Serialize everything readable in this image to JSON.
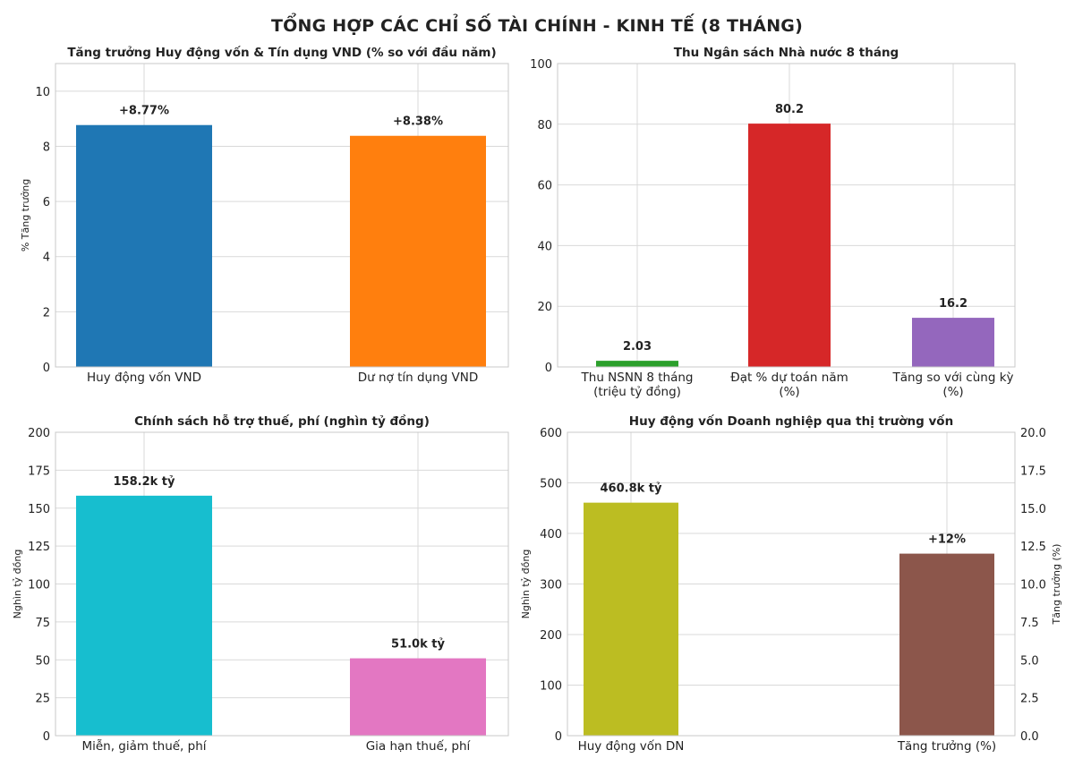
{
  "figure": {
    "suptitle": "TỔNG HỢP CÁC CHỈ SỐ TÀI CHÍNH - KINH TẾ (8 THÁNG)"
  },
  "colors": {
    "grid": "#d9d9d9",
    "axis": "#c8c8c8",
    "text": "#222222",
    "blue": "#1f77b4",
    "orange": "#ff7f0e",
    "green": "#2ca02c",
    "red": "#d62728",
    "purple": "#9467bd",
    "cyan": "#17becf",
    "pink": "#e377c2",
    "olive": "#bcbd22",
    "brown": "#8c564b"
  },
  "chart_data": [
    {
      "id": "c1",
      "type": "bar",
      "title": "Tăng trưởng Huy động vốn & Tín dụng VND (% so với đầu năm)",
      "xlabel": "",
      "ylabel": "% Tăng trưởng",
      "ylim": [
        0,
        11
      ],
      "yticks": [
        "0",
        "2",
        "4",
        "6",
        "8",
        "10"
      ],
      "ytick_values": [
        0,
        2,
        4,
        6,
        8,
        10
      ],
      "grid": true,
      "categories": [
        [
          "Huy động vốn VND"
        ],
        [
          "Dư nợ tín dụng VND"
        ]
      ],
      "values": [
        8.77,
        8.38
      ],
      "labels": [
        "+8.77%",
        "+8.38%"
      ],
      "colors": [
        "#1f77b4",
        "#ff7f0e"
      ]
    },
    {
      "id": "c2",
      "type": "bar",
      "title": "Thu Ngân sách Nhà nước 8 tháng",
      "xlabel": "",
      "ylabel": "",
      "ylim": [
        0,
        100
      ],
      "yticks": [
        "0",
        "20",
        "40",
        "60",
        "80",
        "100"
      ],
      "ytick_values": [
        0,
        20,
        40,
        60,
        80,
        100
      ],
      "grid": true,
      "categories": [
        [
          "Thu NSNN 8 tháng",
          "(triệu tỷ đồng)"
        ],
        [
          "Đạt % dự toán năm",
          "(%)"
        ],
        [
          "Tăng so với cùng kỳ",
          "(%)"
        ]
      ],
      "values": [
        2.03,
        80.2,
        16.2
      ],
      "labels": [
        "2.03",
        "80.2",
        "16.2"
      ],
      "colors": [
        "#2ca02c",
        "#d62728",
        "#9467bd"
      ]
    },
    {
      "id": "c3",
      "type": "bar",
      "title": "Chính sách hỗ trợ thuế, phí (nghìn tỷ đồng)",
      "xlabel": "",
      "ylabel": "Nghìn tỷ đồng",
      "ylim": [
        0,
        200
      ],
      "yticks": [
        "0",
        "25",
        "50",
        "75",
        "100",
        "125",
        "150",
        "175",
        "200"
      ],
      "ytick_values": [
        0,
        25,
        50,
        75,
        100,
        125,
        150,
        175,
        200
      ],
      "grid": true,
      "categories": [
        [
          "Miễn, giảm thuế, phí"
        ],
        [
          "Gia hạn thuế, phí"
        ]
      ],
      "values": [
        158.2,
        51.0
      ],
      "labels": [
        "158.2k tỷ",
        "51.0k tỷ"
      ],
      "colors": [
        "#17becf",
        "#e377c2"
      ]
    },
    {
      "id": "c4",
      "type": "bar",
      "title": "Huy động vốn Doanh nghiệp qua thị trường vốn",
      "xlabel": "",
      "ylabel": "Nghìn tỷ đồng",
      "ylabel_right": "Tăng trưởng (%)",
      "ylim": [
        0,
        600
      ],
      "ylim_right": [
        0,
        20
      ],
      "yticks": [
        "0",
        "100",
        "200",
        "300",
        "400",
        "500",
        "600"
      ],
      "ytick_values": [
        0,
        100,
        200,
        300,
        400,
        500,
        600
      ],
      "yticks_right": [
        "0.0",
        "2.5",
        "5.0",
        "7.5",
        "10.0",
        "12.5",
        "15.0",
        "17.5",
        "20.0"
      ],
      "ytick_values_right": [
        0,
        2.5,
        5,
        7.5,
        10,
        12.5,
        15,
        17.5,
        20
      ],
      "grid": true,
      "categories": [
        [
          "Huy động vốn DN"
        ],
        [
          "Tăng trưởng (%)"
        ]
      ],
      "values": [
        460.8,
        12
      ],
      "value_axis": [
        "left",
        "right"
      ],
      "labels": [
        "460.8k tỷ",
        "+12%"
      ],
      "colors": [
        "#bcbd22",
        "#8c564b"
      ]
    }
  ]
}
